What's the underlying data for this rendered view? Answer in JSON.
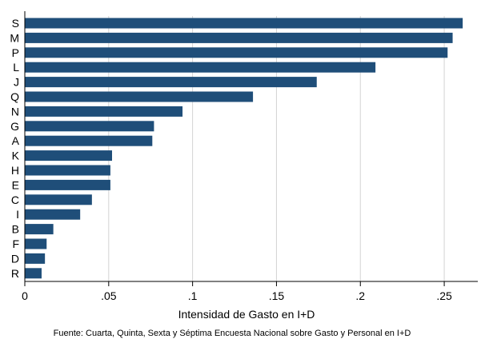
{
  "chart_data": {
    "type": "bar",
    "orientation": "horizontal",
    "categories": [
      "S",
      "M",
      "P",
      "L",
      "J",
      "Q",
      "N",
      "G",
      "A",
      "K",
      "H",
      "E",
      "C",
      "I",
      "B",
      "F",
      "D",
      "R"
    ],
    "values": [
      0.261,
      0.255,
      0.252,
      0.209,
      0.174,
      0.136,
      0.094,
      0.077,
      0.076,
      0.052,
      0.051,
      0.051,
      0.04,
      0.033,
      0.017,
      0.013,
      0.012,
      0.01
    ],
    "xlim": [
      0,
      0.27
    ],
    "xticks": [
      0,
      0.05,
      0.1,
      0.15,
      0.2,
      0.25
    ],
    "xtick_labels": [
      "0",
      ".05",
      ".1",
      ".15",
      ".2",
      ".25"
    ],
    "xlabel": "Intensidad de Gasto en I+D",
    "ylabel": "",
    "grid": "vertical",
    "bar_color": "#1f4e79",
    "grid_color": "#d3d3d3",
    "note": "Fuente: Cuarta, Quinta, Sexta y Séptima Encuesta Nacional sobre Gasto y Personal en I+D"
  }
}
